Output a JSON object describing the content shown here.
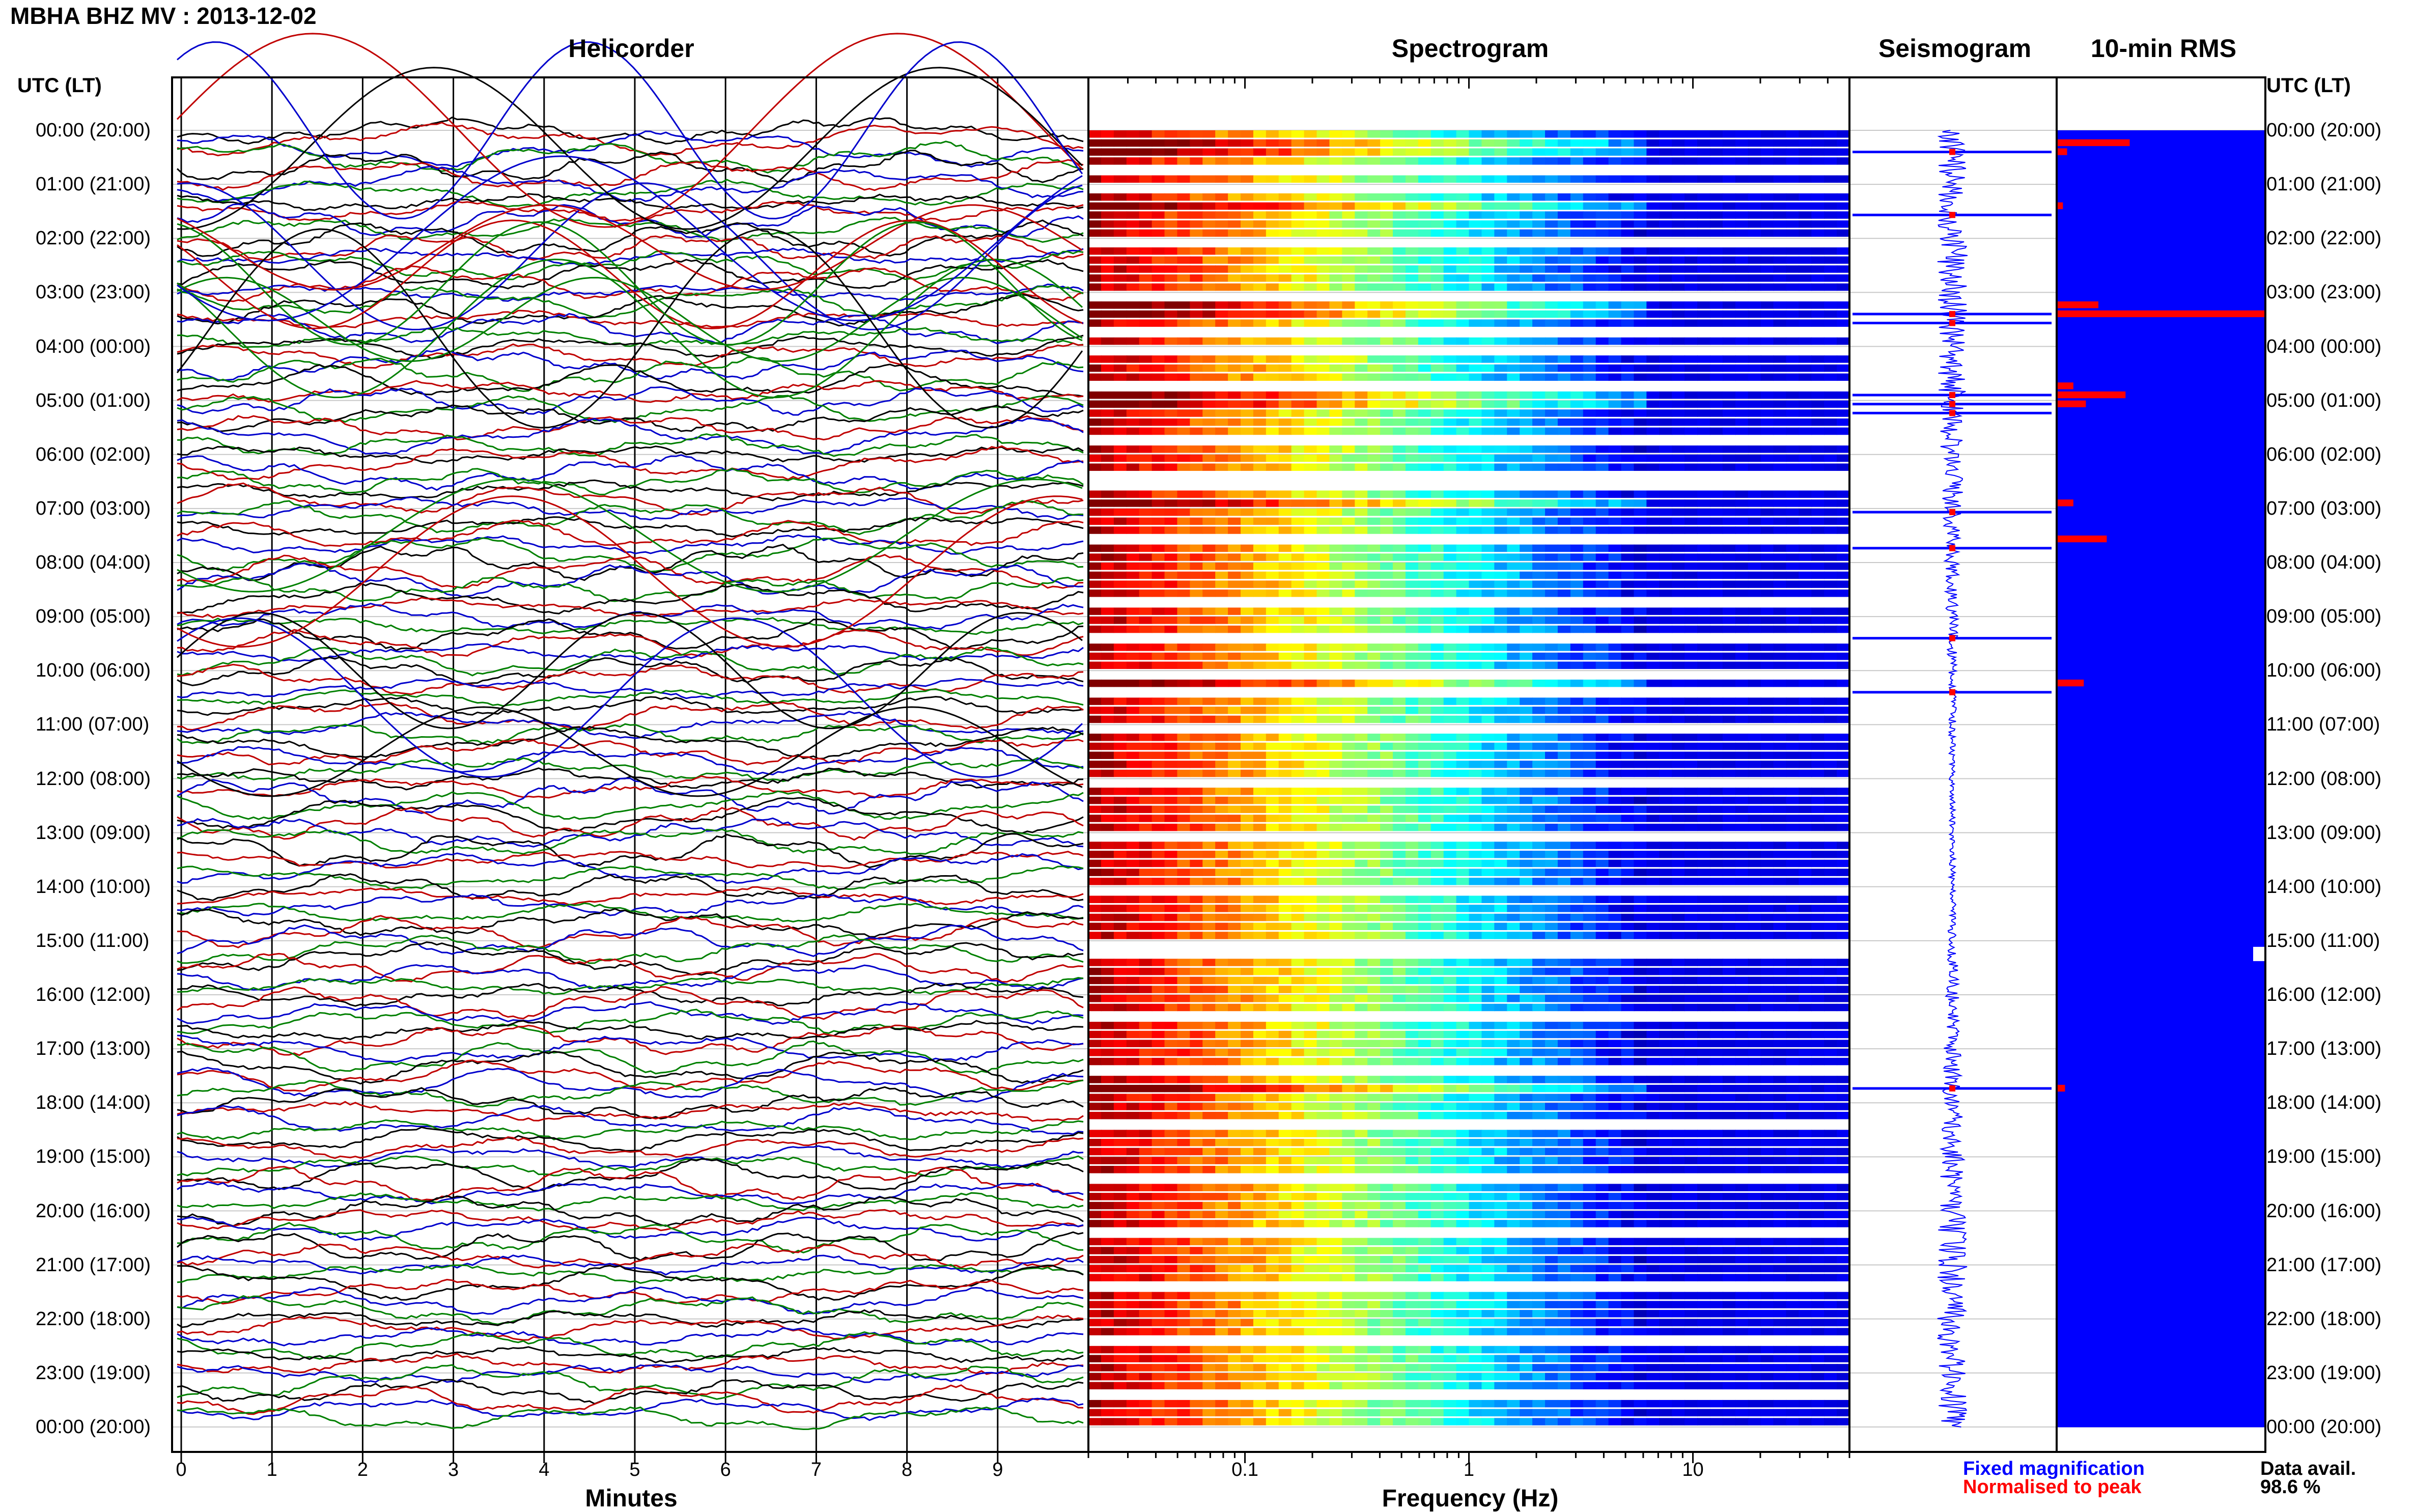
{
  "title": "MBHA BHZ MV : 2013-12-02",
  "panels": {
    "helicorder": "Helicorder",
    "spectrogram": "Spectrogram",
    "seismogram": "Seismogram",
    "rms": "10-min RMS"
  },
  "time_axis_header": "UTC (LT)",
  "time_labels": [
    "00:00 (20:00)",
    "01:00 (21:00)",
    "02:00 (22:00)",
    "03:00 (23:00)",
    "04:00 (00:00)",
    "05:00 (01:00)",
    "06:00 (02:00)",
    "07:00 (03:00)",
    "08:00 (04:00)",
    "09:00 (05:00)",
    "10:00 (06:00)",
    "11:00 (07:00)",
    "12:00 (08:00)",
    "13:00 (09:00)",
    "14:00 (10:00)",
    "15:00 (11:00)",
    "16:00 (12:00)",
    "17:00 (13:00)",
    "18:00 (14:00)",
    "19:00 (15:00)",
    "20:00 (16:00)",
    "21:00 (17:00)",
    "22:00 (18:00)",
    "23:00 (19:00)",
    "00:00 (20:00)"
  ],
  "legend": {
    "fixed": "Fixed magnification",
    "normalised": "Normalised to peak"
  },
  "availability": {
    "label": "Data avail.",
    "value": "98.6 %"
  },
  "colors": {
    "trace_black": "#000000",
    "trace_red": "#c00000",
    "trace_blue": "#0000cc",
    "trace_green": "#008000",
    "rms_bar": "#0000ff",
    "rms_peak": "#ff0000",
    "seismo_fixed": "#0000ff",
    "seismo_norm": "#ff0000",
    "grid": "#c8c8c8"
  },
  "chart_data": [
    {
      "type": "line",
      "panel": "Helicorder",
      "xlabel": "Minutes",
      "x_ticks": [
        "0",
        "1",
        "2",
        "3",
        "4",
        "5",
        "6",
        "7",
        "8",
        "9"
      ],
      "xlim": [
        0,
        10
      ],
      "trace_colors": [
        "black",
        "red",
        "blue",
        "green"
      ],
      "lines_per_hour": 6,
      "hours": 24
    },
    {
      "type": "heatmap",
      "panel": "Spectrogram",
      "xlabel": "Frequency (Hz)",
      "x_scale": "log",
      "xlim": [
        0.02,
        50
      ],
      "x_ticks": [
        "0.1",
        "1",
        "10"
      ],
      "colormap": "jet",
      "rows": 144,
      "energy_concentration": "below 0.1 Hz, decreasing to ~5 Hz",
      "gap_rows_approx": [
        4,
        6,
        12,
        18,
        22,
        24,
        28,
        34,
        38,
        39,
        45,
        52,
        56,
        60,
        62,
        66,
        72,
        78,
        84,
        90,
        91,
        98,
        104,
        110,
        116,
        122,
        128,
        134,
        140
      ]
    },
    {
      "type": "line",
      "panel": "Seismogram",
      "legend": [
        "Fixed magnification",
        "Normalised to peak"
      ],
      "spike_rows_approx": [
        2,
        9,
        20,
        21,
        29,
        30,
        31,
        42,
        46,
        56,
        62,
        106
      ]
    },
    {
      "type": "bar",
      "panel": "10-min RMS",
      "orientation": "horizontal",
      "rows": 144,
      "base_level": 1.0,
      "peak_rows": [
        {
          "row": 1,
          "value": 0.35
        },
        {
          "row": 2,
          "value": 0.05
        },
        {
          "row": 8,
          "value": 0.03
        },
        {
          "row": 19,
          "value": 0.2
        },
        {
          "row": 20,
          "value": 1.0
        },
        {
          "row": 28,
          "value": 0.08
        },
        {
          "row": 29,
          "value": 0.33
        },
        {
          "row": 30,
          "value": 0.14
        },
        {
          "row": 41,
          "value": 0.08
        },
        {
          "row": 45,
          "value": 0.24
        },
        {
          "row": 61,
          "value": 0.13
        },
        {
          "row": 106,
          "value": 0.04
        }
      ]
    }
  ]
}
